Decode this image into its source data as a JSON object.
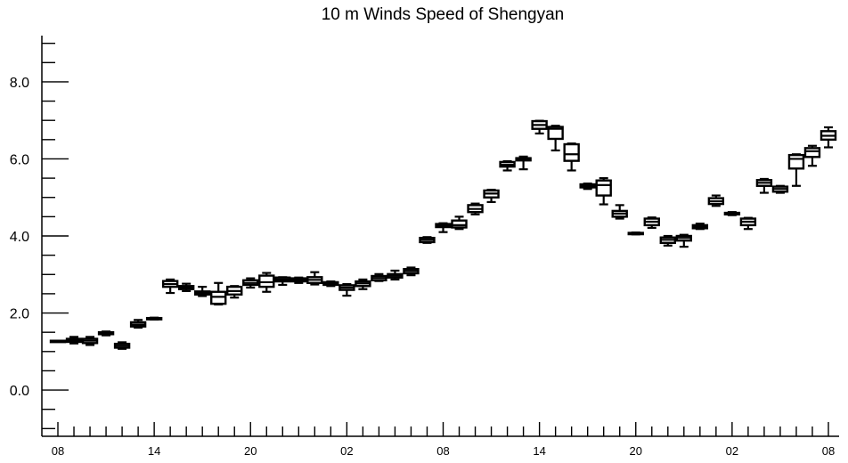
{
  "chart_data": {
    "type": "boxplot",
    "title": "10 m Winds Speed of Shengyan",
    "xlabel": "",
    "ylabel": "",
    "ylim": [
      -1.2,
      9.2
    ],
    "yticks": [
      0.0,
      2.0,
      4.0,
      6.0,
      8.0
    ],
    "ytick_labels": [
      "0.0",
      "2.0",
      "4.0",
      "6.0",
      "8.0"
    ],
    "xlim": [
      0,
      48
    ],
    "xticks": [
      0,
      6,
      12,
      18,
      24,
      30,
      36,
      42,
      48
    ],
    "xtick_labels": [
      "08",
      "14",
      "20",
      "02",
      "08",
      "14",
      "20",
      "02",
      "08"
    ],
    "grid": false,
    "boxes": [
      {
        "x": 0,
        "min": 1.26,
        "q1": 1.26,
        "median": 1.26,
        "q3": 1.28,
        "max": 1.28
      },
      {
        "x": 1,
        "min": 1.21,
        "q1": 1.25,
        "median": 1.29,
        "q3": 1.33,
        "max": 1.38
      },
      {
        "x": 2,
        "min": 1.17,
        "q1": 1.22,
        "median": 1.28,
        "q3": 1.33,
        "max": 1.38
      },
      {
        "x": 3,
        "min": 1.42,
        "q1": 1.45,
        "median": 1.47,
        "q3": 1.5,
        "max": 1.52
      },
      {
        "x": 4,
        "min": 1.07,
        "q1": 1.1,
        "median": 1.15,
        "q3": 1.2,
        "max": 1.24
      },
      {
        "x": 5,
        "min": 1.62,
        "q1": 1.65,
        "median": 1.7,
        "q3": 1.76,
        "max": 1.82
      },
      {
        "x": 6,
        "min": 1.83,
        "q1": 1.84,
        "median": 1.85,
        "q3": 1.87,
        "max": 1.88
      },
      {
        "x": 7,
        "min": 2.52,
        "q1": 2.68,
        "median": 2.75,
        "q3": 2.83,
        "max": 2.87
      },
      {
        "x": 8,
        "min": 2.57,
        "q1": 2.62,
        "median": 2.66,
        "q3": 2.7,
        "max": 2.76
      },
      {
        "x": 9,
        "min": 2.44,
        "q1": 2.48,
        "median": 2.52,
        "q3": 2.56,
        "max": 2.68
      },
      {
        "x": 10,
        "min": 2.22,
        "q1": 2.24,
        "median": 2.42,
        "q3": 2.55,
        "max": 2.78
      },
      {
        "x": 11,
        "min": 2.4,
        "q1": 2.48,
        "median": 2.57,
        "q3": 2.68,
        "max": 2.7
      },
      {
        "x": 12,
        "min": 2.66,
        "q1": 2.73,
        "median": 2.78,
        "q3": 2.85,
        "max": 2.9
      },
      {
        "x": 13,
        "min": 2.55,
        "q1": 2.68,
        "median": 2.8,
        "q3": 2.97,
        "max": 3.04
      },
      {
        "x": 14,
        "min": 2.73,
        "q1": 2.82,
        "median": 2.87,
        "q3": 2.92,
        "max": 2.93
      },
      {
        "x": 15,
        "min": 2.78,
        "q1": 2.82,
        "median": 2.86,
        "q3": 2.9,
        "max": 2.92
      },
      {
        "x": 16,
        "min": 2.74,
        "q1": 2.78,
        "median": 2.86,
        "q3": 2.93,
        "max": 3.06
      },
      {
        "x": 17,
        "min": 2.7,
        "q1": 2.73,
        "median": 2.77,
        "q3": 2.8,
        "max": 2.82
      },
      {
        "x": 18,
        "min": 2.45,
        "q1": 2.6,
        "median": 2.66,
        "q3": 2.72,
        "max": 2.75
      },
      {
        "x": 19,
        "min": 2.62,
        "q1": 2.7,
        "median": 2.77,
        "q3": 2.82,
        "max": 2.87
      },
      {
        "x": 20,
        "min": 2.83,
        "q1": 2.85,
        "median": 2.91,
        "q3": 2.96,
        "max": 3.01
      },
      {
        "x": 21,
        "min": 2.87,
        "q1": 2.92,
        "median": 2.97,
        "q3": 3.01,
        "max": 3.1
      },
      {
        "x": 22,
        "min": 2.98,
        "q1": 3.03,
        "median": 3.09,
        "q3": 3.14,
        "max": 3.18
      },
      {
        "x": 23,
        "min": 3.82,
        "q1": 3.84,
        "median": 3.9,
        "q3": 3.95,
        "max": 3.97
      },
      {
        "x": 24,
        "min": 4.1,
        "q1": 4.23,
        "median": 4.27,
        "q3": 4.31,
        "max": 4.33
      },
      {
        "x": 25,
        "min": 4.18,
        "q1": 4.22,
        "median": 4.28,
        "q3": 4.4,
        "max": 4.5
      },
      {
        "x": 26,
        "min": 4.56,
        "q1": 4.62,
        "median": 4.7,
        "q3": 4.8,
        "max": 4.84
      },
      {
        "x": 27,
        "min": 4.88,
        "q1": 5.0,
        "median": 5.1,
        "q3": 5.18,
        "max": 5.2
      },
      {
        "x": 28,
        "min": 5.7,
        "q1": 5.8,
        "median": 5.85,
        "q3": 5.92,
        "max": 5.94
      },
      {
        "x": 29,
        "min": 5.73,
        "q1": 5.96,
        "median": 5.98,
        "q3": 6.02,
        "max": 6.06
      },
      {
        "x": 30,
        "min": 6.66,
        "q1": 6.78,
        "median": 6.88,
        "q3": 6.98,
        "max": 6.99
      },
      {
        "x": 31,
        "min": 6.22,
        "q1": 6.52,
        "median": 6.78,
        "q3": 6.83,
        "max": 6.86
      },
      {
        "x": 32,
        "min": 5.7,
        "q1": 5.95,
        "median": 6.12,
        "q3": 6.38,
        "max": 6.4
      },
      {
        "x": 33,
        "min": 5.22,
        "q1": 5.26,
        "median": 5.3,
        "q3": 5.34,
        "max": 5.36
      },
      {
        "x": 34,
        "min": 4.82,
        "q1": 5.05,
        "median": 5.32,
        "q3": 5.44,
        "max": 5.5
      },
      {
        "x": 35,
        "min": 4.45,
        "q1": 4.5,
        "median": 4.58,
        "q3": 4.65,
        "max": 4.8
      },
      {
        "x": 36,
        "min": 4.04,
        "q1": 4.05,
        "median": 4.07,
        "q3": 4.08,
        "max": 4.09
      },
      {
        "x": 37,
        "min": 4.21,
        "q1": 4.28,
        "median": 4.37,
        "q3": 4.45,
        "max": 4.48
      },
      {
        "x": 38,
        "min": 3.75,
        "q1": 3.82,
        "median": 3.9,
        "q3": 3.96,
        "max": 4.0
      },
      {
        "x": 39,
        "min": 3.72,
        "q1": 3.88,
        "median": 3.95,
        "q3": 4.0,
        "max": 4.03
      },
      {
        "x": 40,
        "min": 4.18,
        "q1": 4.2,
        "median": 4.24,
        "q3": 4.28,
        "max": 4.32
      },
      {
        "x": 41,
        "min": 4.78,
        "q1": 4.83,
        "median": 4.9,
        "q3": 4.98,
        "max": 5.05
      },
      {
        "x": 42,
        "min": 4.54,
        "q1": 4.56,
        "median": 4.58,
        "q3": 4.6,
        "max": 4.62
      },
      {
        "x": 43,
        "min": 4.18,
        "q1": 4.28,
        "median": 4.37,
        "q3": 4.45,
        "max": 4.47
      },
      {
        "x": 44,
        "min": 5.12,
        "q1": 5.3,
        "median": 5.38,
        "q3": 5.45,
        "max": 5.48
      },
      {
        "x": 45,
        "min": 5.12,
        "q1": 5.15,
        "median": 5.22,
        "q3": 5.28,
        "max": 5.3
      },
      {
        "x": 46,
        "min": 5.3,
        "q1": 5.75,
        "median": 6.0,
        "q3": 6.1,
        "max": 6.12
      },
      {
        "x": 47,
        "min": 5.82,
        "q1": 6.05,
        "median": 6.2,
        "q3": 6.28,
        "max": 6.34
      },
      {
        "x": 48,
        "min": 6.3,
        "q1": 6.5,
        "median": 6.6,
        "q3": 6.72,
        "max": 6.82
      }
    ]
  }
}
